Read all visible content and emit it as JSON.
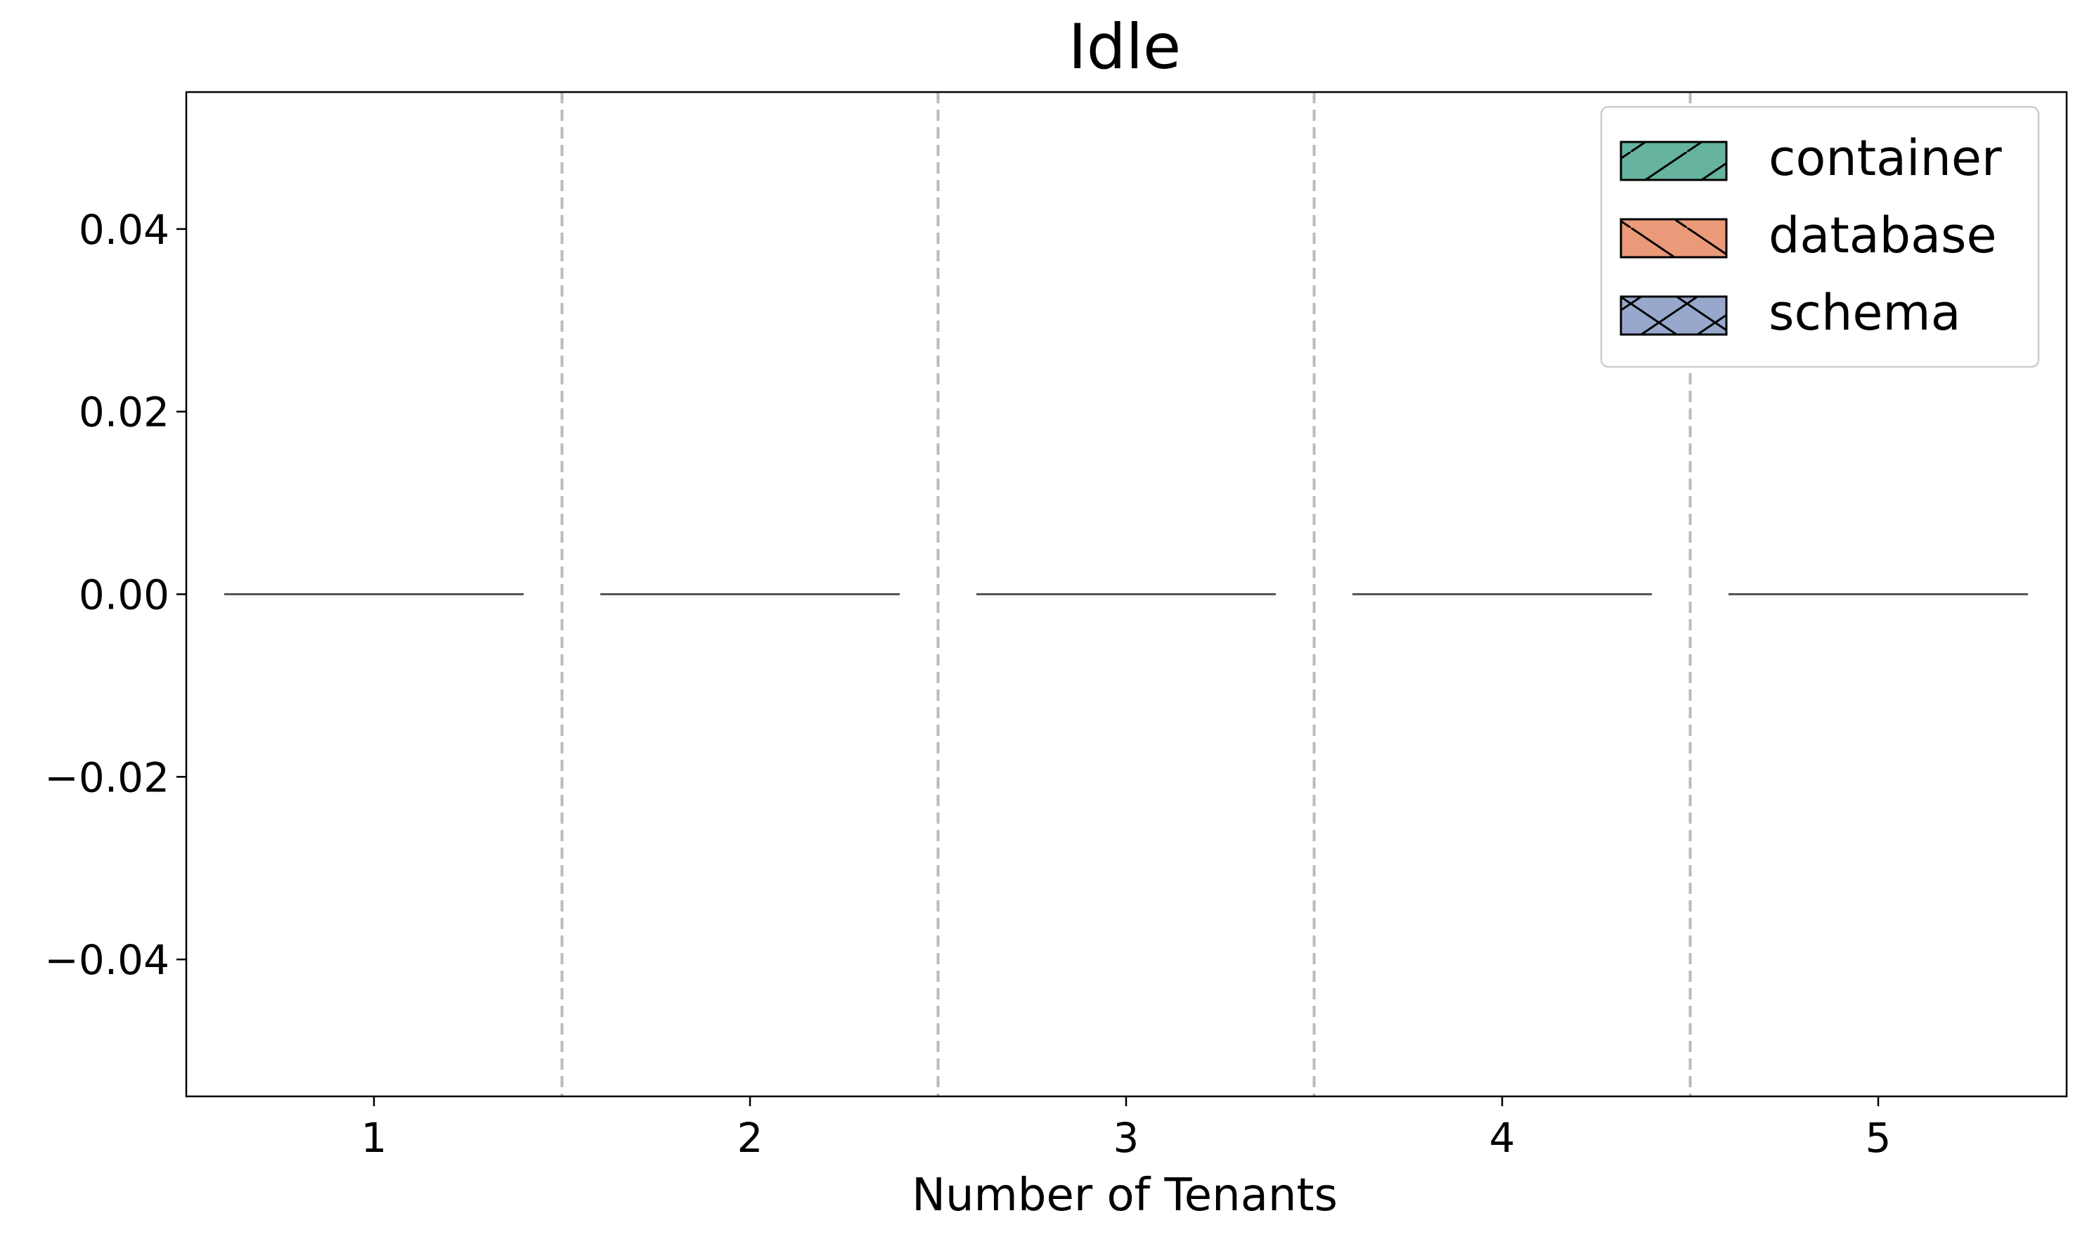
{
  "chart_data": {
    "type": "box",
    "title": "Idle",
    "xlabel": "Number of Tenants",
    "ylabel": "",
    "categories": [
      "1",
      "2",
      "3",
      "4",
      "5"
    ],
    "ylim": [
      -0.055,
      0.055
    ],
    "yticks": [
      0.04,
      0.02,
      0.0,
      -0.02,
      -0.04
    ],
    "ytick_labels": [
      "0.04",
      "0.02",
      "0.00",
      "−0.02",
      "−0.04"
    ],
    "series": [
      {
        "name": "container",
        "color": "#66b3a0",
        "hatch": "/",
        "values": [
          0,
          0,
          0,
          0,
          0
        ]
      },
      {
        "name": "database",
        "color": "#ea9a78",
        "hatch": "\\",
        "values": [
          0,
          0,
          0,
          0,
          0
        ]
      },
      {
        "name": "schema",
        "color": "#97a8cc",
        "hatch": "x",
        "values": [
          0,
          0,
          0,
          0,
          0
        ]
      }
    ],
    "median_line_color": "#555555",
    "separator_lines": "dashed",
    "legend_position": "top-right",
    "grid": false
  }
}
